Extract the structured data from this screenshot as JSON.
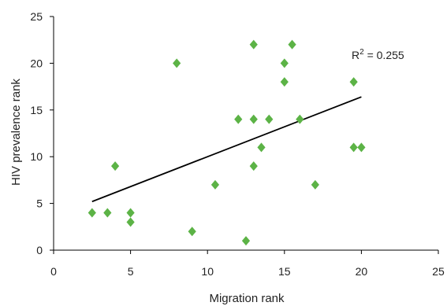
{
  "chart_data": {
    "type": "scatter",
    "title": "",
    "xlabel": "Migration rank",
    "ylabel": "HIV prevalence rank",
    "xlim": [
      0,
      25
    ],
    "ylim": [
      0,
      25
    ],
    "x_ticks": [
      "0",
      "5",
      "10",
      "15",
      "20",
      "25"
    ],
    "y_ticks": [
      "0",
      "5",
      "10",
      "15",
      "20",
      "25"
    ],
    "grid": false,
    "marker": "diamond",
    "marker_color": "#5cb346",
    "series": [
      {
        "points": [
          {
            "x": 2.5,
            "y": 4
          },
          {
            "x": 3.5,
            "y": 4
          },
          {
            "x": 4,
            "y": 9
          },
          {
            "x": 5,
            "y": 4
          },
          {
            "x": 5,
            "y": 3
          },
          {
            "x": 8,
            "y": 20
          },
          {
            "x": 9,
            "y": 2
          },
          {
            "x": 10.5,
            "y": 7
          },
          {
            "x": 12,
            "y": 14
          },
          {
            "x": 12.5,
            "y": 1
          },
          {
            "x": 13,
            "y": 22
          },
          {
            "x": 13,
            "y": 14
          },
          {
            "x": 13,
            "y": 9
          },
          {
            "x": 13.5,
            "y": 11
          },
          {
            "x": 14,
            "y": 14
          },
          {
            "x": 15,
            "y": 20
          },
          {
            "x": 15,
            "y": 18
          },
          {
            "x": 15.5,
            "y": 22
          },
          {
            "x": 16,
            "y": 14
          },
          {
            "x": 17,
            "y": 7
          },
          {
            "x": 19.5,
            "y": 18
          },
          {
            "x": 19.5,
            "y": 11
          },
          {
            "x": 20,
            "y": 11
          }
        ]
      }
    ],
    "trendline": {
      "type": "linear",
      "color": "#000000",
      "x_start": 2.5,
      "y_start": 5.2,
      "x_end": 20,
      "y_end": 16.4
    },
    "annotation": {
      "label": "R",
      "superscript": "2",
      "suffix": " = 0.255"
    }
  }
}
